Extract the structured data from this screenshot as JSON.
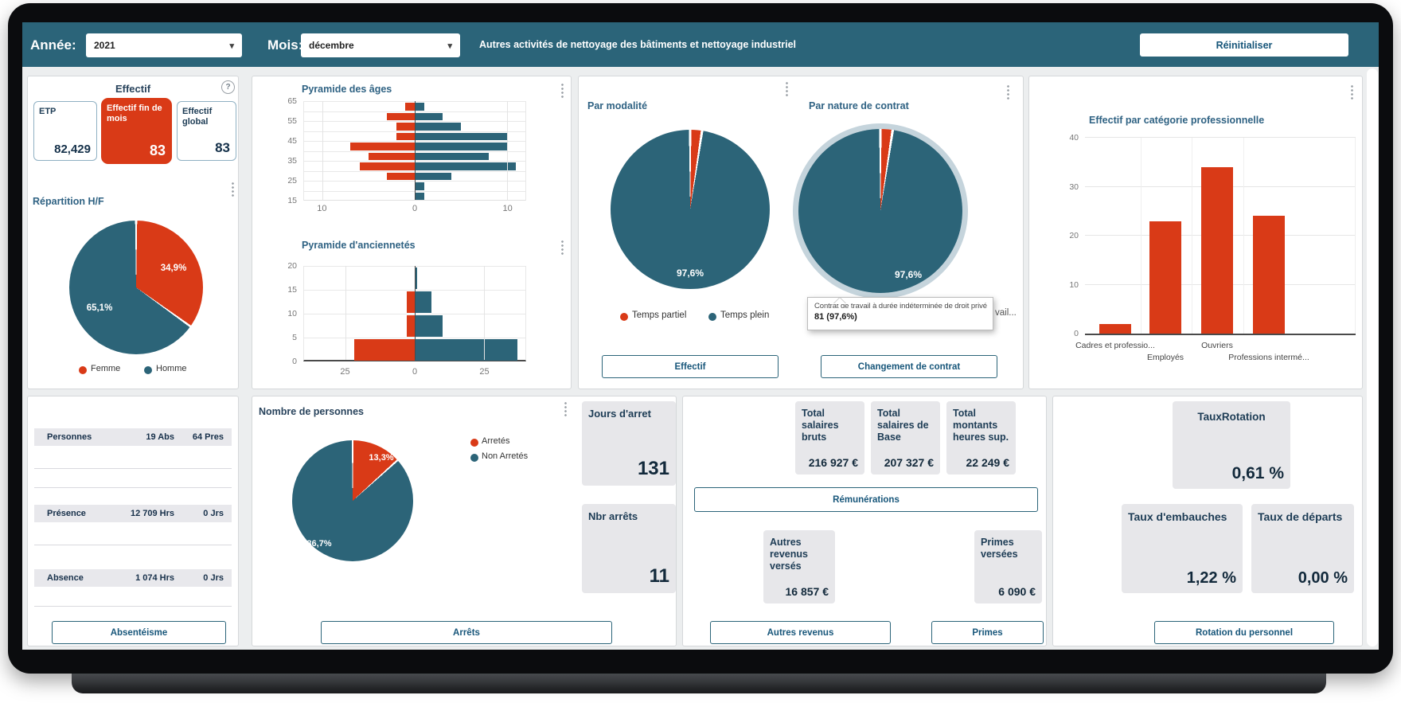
{
  "colors": {
    "red": "#D93A17",
    "teal": "#2C6478",
    "header_bar": "#2B6479",
    "title_text": "#2F6283",
    "value_text": "#15314A",
    "card_gray": "#E7E7EA"
  },
  "header": {
    "annee_label": "Année:",
    "annee_value": "2021",
    "mois_label": "Mois:",
    "mois_value": "décembre",
    "activity_text": "Autres activités de nettoyage des bâtiments et nettoyage industriel",
    "reset_button": "Réinitialiser"
  },
  "effectif": {
    "title": "Effectif",
    "help": "?",
    "cards": [
      {
        "label": "ETP",
        "value": "82,429"
      },
      {
        "label": "Effectif fin de mois",
        "value": "83"
      },
      {
        "label": "Effectif global",
        "value": "83"
      }
    ]
  },
  "modalite": {
    "buttons": [
      "Effectif",
      "Changement de contrat"
    ]
  },
  "absenteisme": {
    "rows": [
      {
        "label": "Personnes",
        "v1": "19 Abs",
        "v2": "64 Pres"
      },
      {
        "label": "Présence",
        "v1": "12 709 Hrs",
        "v2": "0 Jrs"
      },
      {
        "label": "Absence",
        "v1": "1 074 Hrs",
        "v2": "0 Jrs"
      }
    ],
    "button": "Absentéisme"
  },
  "arrets": {
    "cards": [
      {
        "label": "Jours d'arret",
        "value": "131"
      },
      {
        "label": "Nbr arrêts",
        "value": "11"
      }
    ],
    "button": "Arrêts"
  },
  "remunerations": {
    "cards_top": [
      {
        "label": "Total salaires bruts",
        "value": "216 927 €"
      },
      {
        "label": "Total salaires de Base",
        "value": "207 327 €"
      },
      {
        "label": "Total montants heures sup.",
        "value": "22 249 €"
      }
    ],
    "button_main": "Rémunérations",
    "cards_bottom": [
      {
        "label": "Autres revenus versés",
        "value": "16 857 €"
      },
      {
        "label": "Primes versées",
        "value": "6 090 €"
      }
    ],
    "buttons": [
      "Autres revenus",
      "Primes"
    ]
  },
  "rotation": {
    "cards": [
      {
        "label": "TauxRotation",
        "value": "0,61 %"
      },
      {
        "label": "Taux d'embauches",
        "value": "1,22 %"
      },
      {
        "label": "Taux de départs",
        "value": "0,00 %"
      }
    ],
    "button": "Rotation du personnel"
  },
  "chart_data": [
    {
      "id": "repartition_hf",
      "type": "pie",
      "title": "Répartition H/F",
      "legend_position": "bottom",
      "slices": [
        {
          "label": "Femme",
          "pct": 34.9,
          "color": "#D93A17",
          "data_label": "34,9%"
        },
        {
          "label": "Homme",
          "pct": 65.1,
          "color": "#2C6478",
          "data_label": "65,1%"
        }
      ]
    },
    {
      "id": "pyramide_ages",
      "type": "bar",
      "subtype": "population-pyramid",
      "title": "Pyramide des âges",
      "bins_top_to_bottom": [
        "60-65",
        "55-60",
        "50-55",
        "45-50",
        "40-45",
        "35-40",
        "30-35",
        "25-30",
        "20-25",
        "15-20"
      ],
      "y_ticks": [
        65,
        55,
        45,
        35,
        25,
        15
      ],
      "x_ticks": [
        -10,
        0,
        10
      ],
      "xlim": [
        -12,
        12
      ],
      "series": [
        {
          "name": "Femme",
          "color": "#D93A17",
          "values": [
            1,
            3,
            2,
            2,
            7,
            5,
            6,
            3,
            0,
            0
          ]
        },
        {
          "name": "Homme",
          "color": "#2C6478",
          "values": [
            1,
            3,
            5,
            10,
            10,
            8,
            11,
            4,
            1,
            1
          ]
        }
      ]
    },
    {
      "id": "pyramide_anciennetes",
      "type": "bar",
      "subtype": "population-pyramid",
      "title": "Pyramide d'anciennetés",
      "bins_top_to_bottom": [
        "15-20",
        "10-15",
        "5-10",
        "0-5"
      ],
      "y_ticks": [
        20,
        15,
        10,
        5,
        0
      ],
      "x_ticks": [
        -25,
        0,
        25
      ],
      "xlim": [
        -40,
        40
      ],
      "series": [
        {
          "name": "Femme",
          "color": "#D93A17",
          "values": [
            0,
            3,
            3,
            22
          ]
        },
        {
          "name": "Homme",
          "color": "#2C6478",
          "values": [
            1,
            6,
            10,
            37
          ]
        }
      ]
    },
    {
      "id": "par_modalite",
      "type": "pie",
      "title": "Par modalité",
      "data_label": "97,6%",
      "legend_position": "bottom",
      "slices": [
        {
          "label": "Temps partiel",
          "pct": 2.4,
          "color": "#D93A17"
        },
        {
          "label": "Temps plein",
          "pct": 97.6,
          "color": "#2C6478"
        }
      ]
    },
    {
      "id": "par_nature_contrat",
      "type": "pie",
      "title": "Par nature de contrat",
      "data_label": "97,6%",
      "selected": true,
      "legend_truncated": "vail...",
      "tooltip": {
        "line1": "Contrat de travail à durée indéterminée de droit privé",
        "line2": "81 (97,6%)"
      },
      "slices": [
        {
          "pct": 2.4,
          "color": "#D93A17"
        },
        {
          "label": "Contrat de travail à durée indéterminée de droit privé",
          "pct": 97.6,
          "value": 81,
          "color": "#2C6478"
        }
      ]
    },
    {
      "id": "effectif_par_categorie",
      "type": "bar",
      "title": "Effectif par catégorie professionnelle",
      "categories": [
        "Cadres et professio...",
        "Employés",
        "Ouvriers",
        "Professions intermé..."
      ],
      "values": [
        2,
        23,
        34,
        24
      ],
      "ylim": [
        0,
        40
      ],
      "y_ticks": [
        0,
        10,
        20,
        30,
        40
      ],
      "color": "#D93A17"
    },
    {
      "id": "nombre_personnes",
      "type": "pie",
      "title": "Nombre de personnes",
      "legend_position": "right",
      "slices": [
        {
          "label": "Arretés",
          "pct": 13.3,
          "color": "#D93A17",
          "data_label": "13,3%"
        },
        {
          "label": "Non Arretés",
          "pct": 86.7,
          "color": "#2C6478",
          "data_label": "86,7%"
        }
      ]
    }
  ]
}
